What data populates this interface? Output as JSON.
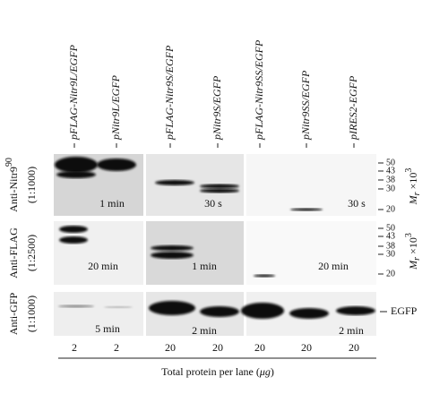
{
  "lanes": [
    "pFLAG-Nitr9L/EGFP",
    "pNitr9L/EGFP",
    "pFLAG-Nitr9S/EGFP",
    "pNitr9S/EGFP",
    "pFLAG-Nitr9SS/EGFP",
    "pNitr9SS/EGFP",
    "pIRES2-EGFP"
  ],
  "blots": [
    {
      "antibody": "Anti-Nitr9",
      "antibody_sup": "90",
      "dilution": "(1:1000)",
      "exposures": [
        "1 min",
        "30 s",
        "30 s"
      ]
    },
    {
      "antibody": "Anti-FLAG",
      "dilution": "(1:2500)",
      "exposures": [
        "20 min",
        "1 min",
        "20 min"
      ]
    },
    {
      "antibody": "Anti-GFP",
      "dilution": "(1:1000)",
      "exposures": [
        "5 min",
        "2 min",
        "2 min"
      ]
    }
  ],
  "markers": [
    "50",
    "43",
    "38",
    "30",
    "20"
  ],
  "mr_label": {
    "main": "M",
    "sub": "r",
    "rest": " ×10",
    "sup": "3"
  },
  "egfp_label": "EGFP",
  "protein": [
    "2",
    "2",
    "20",
    "20",
    "20",
    "20",
    "20"
  ],
  "caption": {
    "before": "Total protein per lane (",
    "unit": "μg",
    "after": ")"
  }
}
